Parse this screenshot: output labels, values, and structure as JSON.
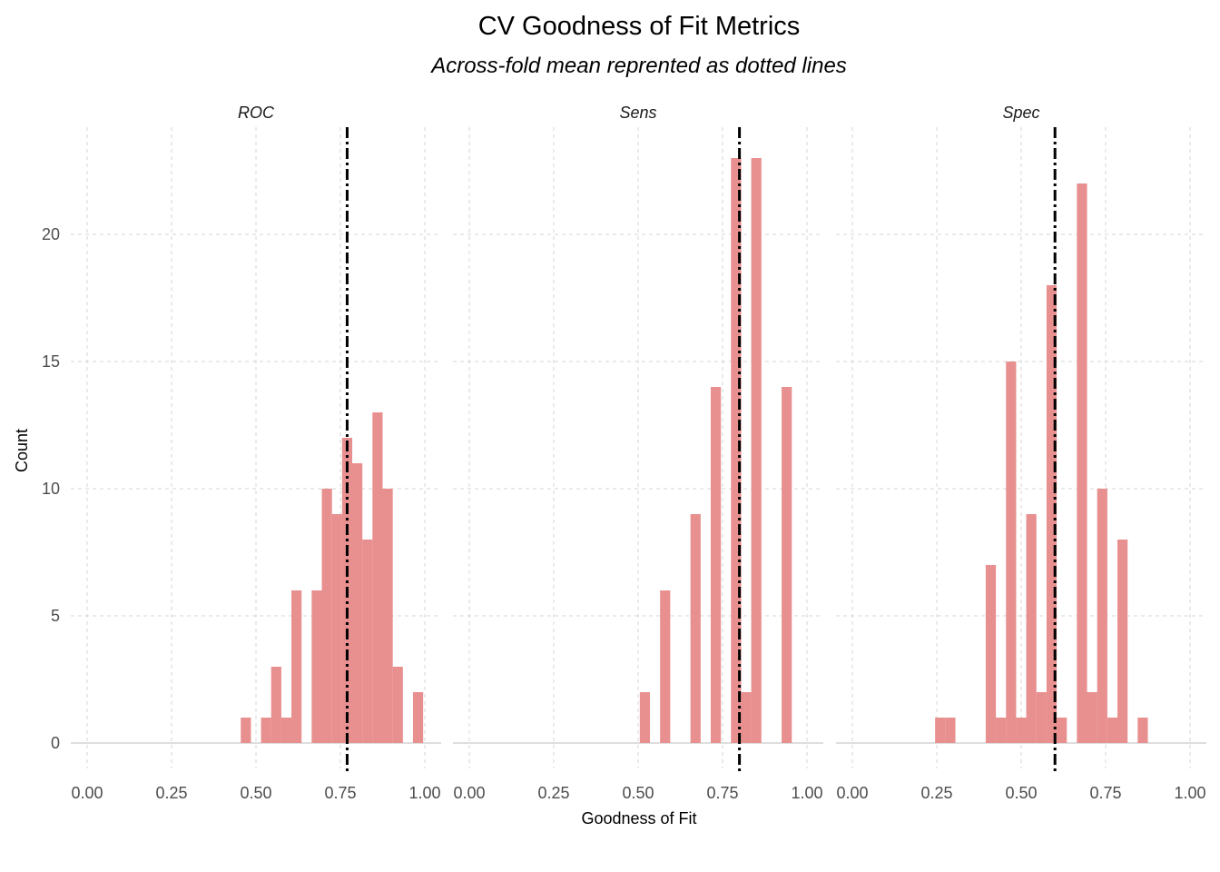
{
  "chart_data": {
    "type": "bar",
    "title": "CV Goodness of Fit Metrics",
    "subtitle": "Across-fold mean reprented as dotted lines",
    "xlabel": "Goodness of Fit",
    "ylabel": "Count",
    "xlim": [
      0,
      1
    ],
    "xticks": [
      "0.00",
      "0.25",
      "0.50",
      "0.75",
      "1.00"
    ],
    "xtick_values": [
      0,
      0.25,
      0.5,
      0.75,
      1.0
    ],
    "ylim": [
      0,
      23
    ],
    "yticks": [
      "0",
      "5",
      "10",
      "15",
      "20"
    ],
    "ytick_values": [
      0,
      5,
      10,
      15,
      20
    ],
    "bar_color": "#e88f8f",
    "grid": true,
    "panels": [
      {
        "name": "ROC",
        "mean": 0.77,
        "bins": [
          {
            "x": 0.47,
            "count": 1
          },
          {
            "x": 0.53,
            "count": 1
          },
          {
            "x": 0.56,
            "count": 3
          },
          {
            "x": 0.59,
            "count": 1
          },
          {
            "x": 0.62,
            "count": 6
          },
          {
            "x": 0.68,
            "count": 6
          },
          {
            "x": 0.71,
            "count": 10
          },
          {
            "x": 0.74,
            "count": 9
          },
          {
            "x": 0.77,
            "count": 12
          },
          {
            "x": 0.8,
            "count": 11
          },
          {
            "x": 0.83,
            "count": 8
          },
          {
            "x": 0.86,
            "count": 13
          },
          {
            "x": 0.89,
            "count": 10
          },
          {
            "x": 0.92,
            "count": 3
          },
          {
            "x": 0.98,
            "count": 2
          }
        ]
      },
      {
        "name": "Sens",
        "mean": 0.8,
        "bins": [
          {
            "x": 0.52,
            "count": 2
          },
          {
            "x": 0.58,
            "count": 6
          },
          {
            "x": 0.67,
            "count": 9
          },
          {
            "x": 0.73,
            "count": 14
          },
          {
            "x": 0.79,
            "count": 23
          },
          {
            "x": 0.82,
            "count": 2
          },
          {
            "x": 0.85,
            "count": 23
          },
          {
            "x": 0.94,
            "count": 14
          }
        ]
      },
      {
        "name": "Spec",
        "mean": 0.6,
        "bins": [
          {
            "x": 0.26,
            "count": 1
          },
          {
            "x": 0.29,
            "count": 1
          },
          {
            "x": 0.41,
            "count": 7
          },
          {
            "x": 0.44,
            "count": 1
          },
          {
            "x": 0.47,
            "count": 15
          },
          {
            "x": 0.5,
            "count": 1
          },
          {
            "x": 0.53,
            "count": 9
          },
          {
            "x": 0.56,
            "count": 2
          },
          {
            "x": 0.59,
            "count": 18
          },
          {
            "x": 0.62,
            "count": 1
          },
          {
            "x": 0.68,
            "count": 22
          },
          {
            "x": 0.71,
            "count": 2
          },
          {
            "x": 0.74,
            "count": 10
          },
          {
            "x": 0.77,
            "count": 1
          },
          {
            "x": 0.8,
            "count": 8
          },
          {
            "x": 0.86,
            "count": 1
          }
        ]
      }
    ]
  }
}
